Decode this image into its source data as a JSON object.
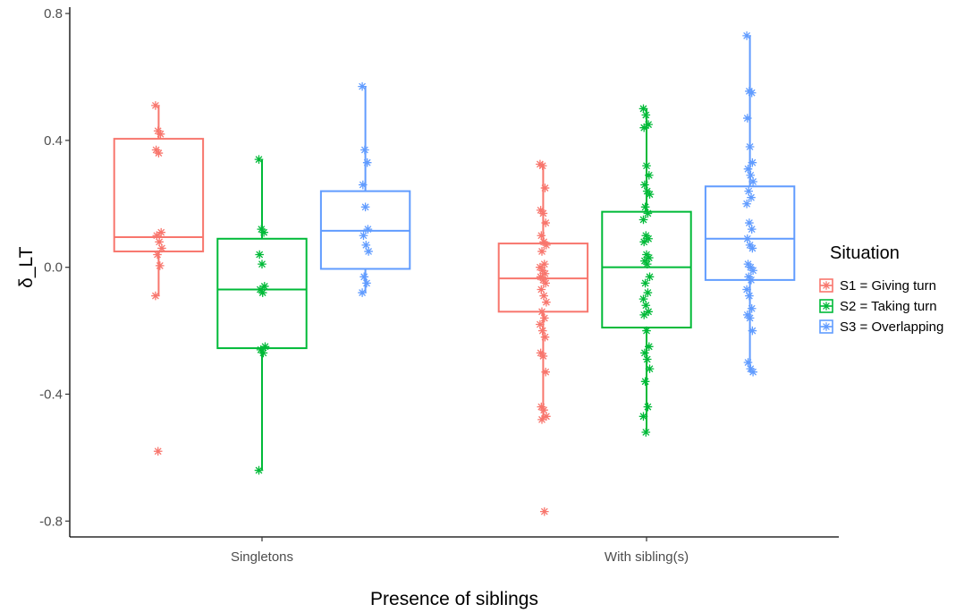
{
  "chart_data": {
    "type": "boxplot",
    "xlabel": "Presence of siblings",
    "ylabel": "δ_LT",
    "ylim": [
      -0.85,
      0.82
    ],
    "yticks": [
      -0.8,
      -0.4,
      0.0,
      0.4,
      0.8
    ],
    "ytick_labels": [
      "-0.8",
      "-0.4",
      "0.0",
      "0.4",
      "0.8"
    ],
    "categories": [
      "Singletons",
      "With sibling(s)"
    ],
    "legend": {
      "title": "Situation",
      "position": "right"
    },
    "grid": false,
    "series": [
      {
        "name": "S1 = Giving turn",
        "color": "#f8766d",
        "boxes": [
          {
            "min": -0.09,
            "q1": 0.05,
            "median": 0.095,
            "q3": 0.405,
            "max": 0.51,
            "points": [
              0.51,
              0.43,
              0.42,
              0.37,
              0.36,
              0.11,
              0.1,
              0.08,
              0.06,
              0.04,
              0.005,
              -0.09,
              -0.58
            ]
          },
          {
            "min": -0.48,
            "q1": -0.14,
            "median": -0.035,
            "q3": 0.075,
            "max": 0.325,
            "points": [
              0.325,
              0.32,
              0.25,
              0.18,
              0.17,
              0.14,
              0.1,
              0.08,
              0.07,
              0.05,
              0.01,
              0.0,
              -0.01,
              -0.02,
              -0.03,
              -0.04,
              -0.05,
              -0.07,
              -0.09,
              -0.11,
              -0.14,
              -0.16,
              -0.18,
              -0.2,
              -0.22,
              -0.27,
              -0.28,
              -0.33,
              -0.44,
              -0.45,
              -0.47,
              -0.48,
              -0.77
            ]
          }
        ]
      },
      {
        "name": "S2 = Taking turn",
        "color": "#00ba38",
        "boxes": [
          {
            "min": -0.64,
            "q1": -0.255,
            "median": -0.07,
            "q3": 0.09,
            "max": 0.34,
            "points": [
              0.34,
              0.12,
              0.11,
              0.04,
              0.01,
              -0.06,
              -0.07,
              -0.08,
              -0.25,
              -0.26,
              -0.27,
              -0.64
            ]
          },
          {
            "min": -0.52,
            "q1": -0.19,
            "median": 0.0,
            "q3": 0.175,
            "max": 0.5,
            "points": [
              0.5,
              0.48,
              0.45,
              0.44,
              0.32,
              0.29,
              0.26,
              0.24,
              0.23,
              0.19,
              0.17,
              0.15,
              0.1,
              0.09,
              0.08,
              0.04,
              0.03,
              0.02,
              0.01,
              -0.03,
              -0.05,
              -0.08,
              -0.1,
              -0.12,
              -0.14,
              -0.15,
              -0.2,
              -0.25,
              -0.27,
              -0.29,
              -0.32,
              -0.36,
              -0.44,
              -0.47,
              -0.52
            ]
          }
        ]
      },
      {
        "name": "S3 = Overlapping",
        "color": "#619cff",
        "boxes": [
          {
            "min": -0.08,
            "q1": -0.005,
            "median": 0.115,
            "q3": 0.24,
            "max": 0.57,
            "points": [
              0.57,
              0.37,
              0.33,
              0.26,
              0.19,
              0.12,
              0.1,
              0.07,
              0.05,
              -0.03,
              -0.05,
              -0.08
            ]
          },
          {
            "min": -0.33,
            "q1": -0.04,
            "median": 0.09,
            "q3": 0.255,
            "max": 0.73,
            "points": [
              0.73,
              0.555,
              0.55,
              0.47,
              0.38,
              0.33,
              0.31,
              0.29,
              0.27,
              0.24,
              0.22,
              0.2,
              0.14,
              0.12,
              0.09,
              0.07,
              0.06,
              0.01,
              0.0,
              -0.01,
              -0.03,
              -0.04,
              -0.07,
              -0.09,
              -0.13,
              -0.15,
              -0.16,
              -0.2,
              -0.3,
              -0.32,
              -0.33
            ]
          }
        ]
      }
    ]
  }
}
